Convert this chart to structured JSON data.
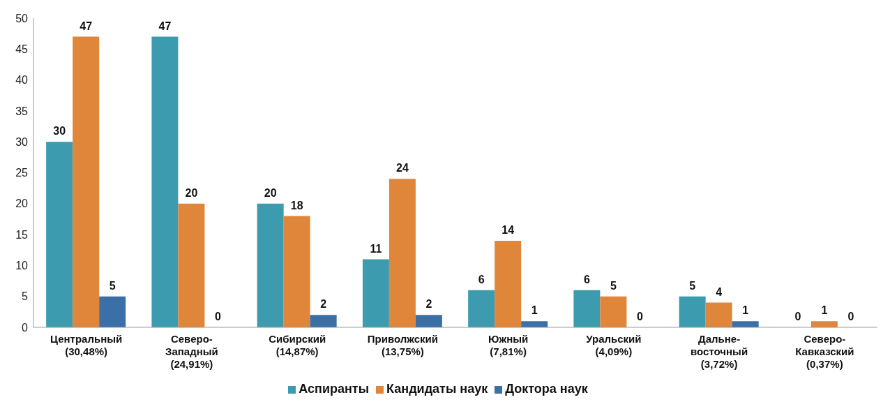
{
  "chart_data": {
    "type": "bar",
    "categories": [
      "Центральный\n(30,48%)",
      "Северо-\nЗападный\n(24,91%)",
      "Сибирский\n(14,87%)",
      "Приволжский\n(13,75%)",
      "Южный\n(7,81%)",
      "Уральский\n(4,09%)",
      "Дальне-\nвосточный\n(3,72%)",
      "Северо-\nКавказский\n(0,37%)"
    ],
    "series": [
      {
        "name": "Аспиранты",
        "color": "#3d9bb0",
        "values": [
          30,
          47,
          20,
          11,
          6,
          6,
          5,
          0
        ]
      },
      {
        "name": "Кандидаты наук",
        "color": "#e0863b",
        "values": [
          47,
          20,
          18,
          24,
          14,
          5,
          4,
          1
        ]
      },
      {
        "name": "Доктора наук",
        "color": "#3a6fa8",
        "values": [
          5,
          0,
          2,
          2,
          1,
          0,
          1,
          0
        ]
      }
    ],
    "ylim": [
      0,
      50
    ],
    "yticks": [
      0,
      5,
      10,
      15,
      20,
      25,
      30,
      35,
      40,
      45,
      50
    ],
    "grid": false,
    "legend": "bottom",
    "data_labels": true
  }
}
